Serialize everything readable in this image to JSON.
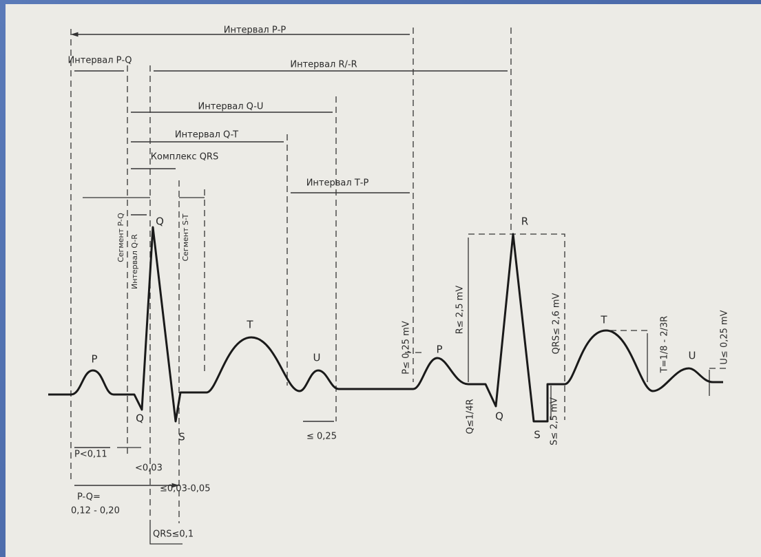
{
  "intervals": [
    "Интервал Р-Р",
    "Интервал Р-Q",
    "Интервал R/-R",
    "Интервал Q-U",
    "Интервал Q-T",
    "Комплекс QRS",
    "Интервал Т-Р"
  ],
  "segments": [
    "Сегмент P-Q",
    "Интервал Q-R",
    "Сегмент S-T"
  ],
  "waves": [
    "P",
    "Q",
    "Q",
    "S",
    "T",
    "U",
    "P",
    "R",
    "Q",
    "S",
    "T",
    "U"
  ],
  "amplitudes": [
    "P≤ 0,25 mV",
    "R≤ 2,5 mV",
    "QRS≤ 2,6 mV",
    "T=1/8 - 2/3R",
    "U≤ 0,25 mV",
    "Q≤1/4R",
    "S≤ 2,5 mV"
  ],
  "durations": [
    "P<0,11",
    "<0,03",
    "≤0,03-0,05",
    "P-Q=",
    "0,12 - 0,20",
    "QRS≤0,1",
    "≤ 0,25"
  ]
}
